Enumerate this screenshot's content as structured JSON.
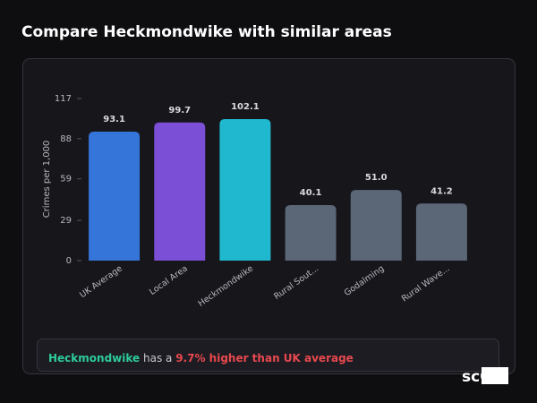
{
  "chart_data": {
    "type": "bar",
    "title": "Compare Heckmondwike with similar areas",
    "y_label": "Crimes per 1,000",
    "categories": [
      "UK Average",
      "Local Area",
      "Heckmondwike",
      "Rural Sout...",
      "Godalming",
      "Rural Wave..."
    ],
    "values": [
      93.1,
      99.7,
      102.1,
      40.1,
      51.0,
      41.2
    ],
    "value_labels": [
      "93.1",
      "99.7",
      "102.1",
      "40.1",
      "51.0",
      "41.2"
    ],
    "colors": [
      "#3574d9",
      "#7b4fd6",
      "#20b8cf",
      "#5b6677",
      "#5b6677",
      "#5b6677"
    ],
    "ylim": [
      0,
      117
    ],
    "yticks": [
      0,
      29,
      59,
      88,
      117
    ]
  },
  "callout": {
    "area": "Heckmondwike",
    "text": "has a",
    "highlight": "9.7% higher than UK average"
  },
  "logo": {
    "text": "scOS"
  }
}
